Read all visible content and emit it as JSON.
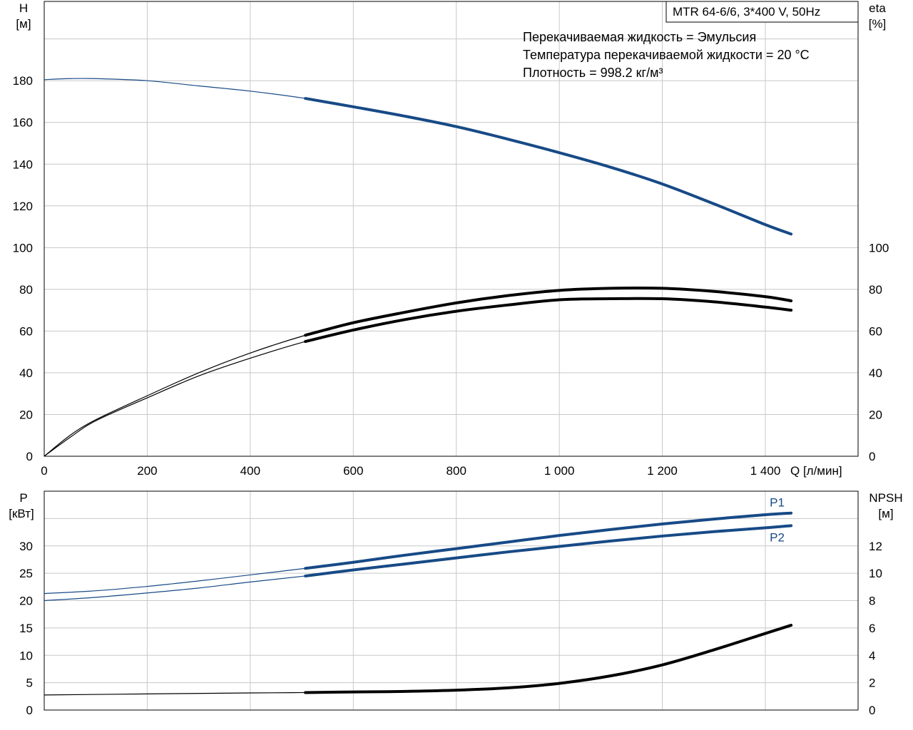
{
  "chart_data": [
    {
      "type": "line",
      "title": "MTR 64-6/6, 3*400 V, 50Hz",
      "notes": [
        "Перекачиваемая жидкость = Эмульсия",
        "Температура перекачиваемой жидкости = 20 °C",
        "Плотность = 998.2 кг/м³"
      ],
      "xlabel": "Q [л/мин]",
      "xlim": [
        0,
        1580
      ],
      "x_ticks": [
        0,
        200,
        400,
        600,
        800,
        1000,
        1200,
        1400
      ],
      "x_tick_labels": [
        "0",
        "200",
        "400",
        "600",
        "800",
        "1 000",
        "1 200",
        "1 400"
      ],
      "ylabel_left": [
        "H",
        "[м]"
      ],
      "ylim_left": [
        0,
        218
      ],
      "y_ticks_left": [
        0,
        20,
        40,
        60,
        80,
        100,
        120,
        140,
        160,
        180
      ],
      "ylabel_right": [
        "eta",
        "[%]"
      ],
      "ylim_right": [
        0,
        218
      ],
      "y_ticks_right": [
        0,
        20,
        40,
        60,
        80,
        100
      ],
      "grid": true,
      "operating_range_start": 507,
      "series": [
        {
          "axis": "left",
          "color": "#174a86",
          "x": [
            0,
            50,
            100,
            200,
            300,
            400,
            507,
            600,
            700,
            800,
            900,
            1000,
            1100,
            1200,
            1300,
            1400,
            1450
          ],
          "y": [
            180.5,
            181,
            181,
            180,
            177.5,
            175,
            171.5,
            167.5,
            163,
            158,
            152,
            145.5,
            138.5,
            130.5,
            121,
            111,
            106.5
          ]
        },
        {
          "axis": "right",
          "color": "#000000",
          "x": [
            0,
            50,
            100,
            200,
            300,
            400,
            507,
            600,
            700,
            800,
            900,
            1000,
            1100,
            1200,
            1300,
            1400,
            1450
          ],
          "y": [
            0,
            10,
            17.5,
            29,
            40,
            49.5,
            58,
            64,
            69,
            73.5,
            77,
            79.5,
            80.5,
            80.5,
            79,
            76.5,
            74.5
          ]
        },
        {
          "axis": "right",
          "color": "#000000",
          "x": [
            0,
            50,
            100,
            200,
            300,
            400,
            507,
            600,
            700,
            800,
            900,
            1000,
            1100,
            1200,
            1300,
            1400,
            1450
          ],
          "y": [
            0,
            9,
            17,
            28,
            38.5,
            47,
            55,
            60.5,
            65.5,
            69.5,
            72.5,
            75,
            75.5,
            75.5,
            74,
            71.5,
            70
          ]
        }
      ]
    },
    {
      "type": "line",
      "xlim": [
        0,
        1580
      ],
      "x_ticks": [
        0,
        200,
        400,
        600,
        800,
        1000,
        1200,
        1400
      ],
      "ylabel_left": [
        "P",
        "[кВт]"
      ],
      "ylim_left": [
        0,
        40
      ],
      "y_ticks_left": [
        0,
        5,
        10,
        15,
        20,
        25,
        30
      ],
      "ylabel_right": [
        "NPSH",
        "[м]"
      ],
      "ylim_right": [
        0,
        16
      ],
      "y_ticks_right": [
        0,
        2,
        4,
        6,
        8,
        10,
        12
      ],
      "grid": true,
      "operating_range_start": 507,
      "series": [
        {
          "name": "P1",
          "axis": "left",
          "color": "#174a86",
          "x": [
            0,
            100,
            200,
            300,
            400,
            507,
            600,
            700,
            800,
            900,
            1000,
            1100,
            1200,
            1300,
            1400,
            1450
          ],
          "y": [
            21.3,
            21.8,
            22.6,
            23.6,
            24.7,
            25.9,
            27,
            28.3,
            29.5,
            30.7,
            31.9,
            33,
            34,
            34.9,
            35.7,
            36
          ]
        },
        {
          "name": "P2",
          "axis": "left",
          "color": "#174a86",
          "x": [
            0,
            100,
            200,
            300,
            400,
            507,
            600,
            700,
            800,
            900,
            1000,
            1100,
            1200,
            1300,
            1400,
            1450
          ],
          "y": [
            20,
            20.6,
            21.4,
            22.3,
            23.4,
            24.5,
            25.6,
            26.7,
            27.8,
            28.9,
            29.9,
            30.9,
            31.8,
            32.6,
            33.3,
            33.7
          ]
        },
        {
          "axis": "right",
          "color": "#000000",
          "x": [
            0,
            200,
            400,
            507,
            600,
            700,
            800,
            900,
            1000,
            1100,
            1200,
            1300,
            1400,
            1450
          ],
          "y": [
            1.1,
            1.18,
            1.25,
            1.28,
            1.32,
            1.36,
            1.45,
            1.62,
            1.95,
            2.5,
            3.3,
            4.4,
            5.6,
            6.2
          ]
        }
      ]
    }
  ]
}
